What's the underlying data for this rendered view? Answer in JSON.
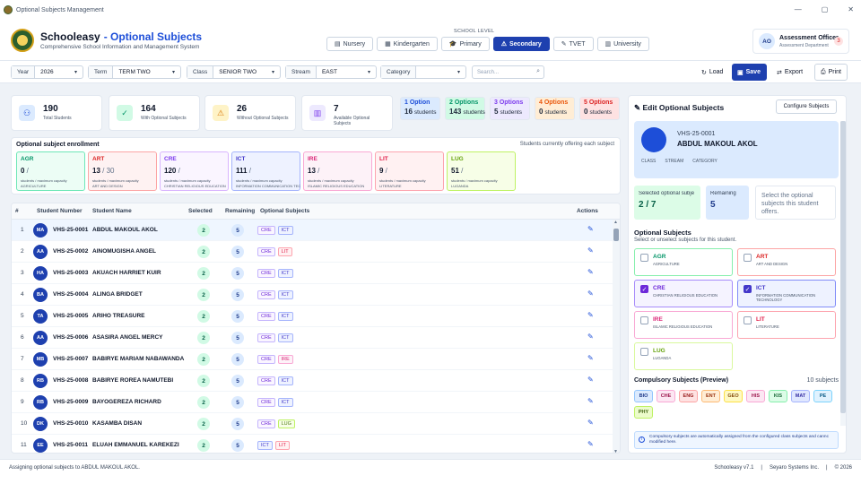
{
  "window": {
    "title": "Optional Subjects Management",
    "controls": [
      "—",
      "▢",
      "✕"
    ]
  },
  "header": {
    "brand": "Schooleasy",
    "separator": "-",
    "module": "Optional Subjects",
    "tagline": "Comprehensive School Information and Management System",
    "school_level_label": "SCHOOL LEVEL",
    "levels": [
      {
        "label": "Nursery",
        "icon": "book-icon",
        "glyph": "▤"
      },
      {
        "label": "Kindergarten",
        "icon": "grid-icon",
        "glyph": "▦"
      },
      {
        "label": "Primary",
        "icon": "graduation-icon",
        "glyph": "🎓"
      },
      {
        "label": "Secondary",
        "icon": "warning-triangle-icon",
        "glyph": "⚠",
        "active": true
      },
      {
        "label": "TVET",
        "icon": "pencil-icon",
        "glyph": "✎"
      },
      {
        "label": "University",
        "icon": "building-icon",
        "glyph": "▥"
      }
    ],
    "user": {
      "initials": "AO",
      "name": "Assessment Officer",
      "role": "Assessment Department",
      "badge": "3"
    }
  },
  "filters": {
    "year": {
      "label": "Year",
      "value": "2026"
    },
    "term": {
      "label": "Term",
      "value": "TERM TWO"
    },
    "class": {
      "label": "Class",
      "value": "SENIOR TWO"
    },
    "stream": {
      "label": "Stream",
      "value": "EAST"
    },
    "category": {
      "label": "Category",
      "value": ""
    },
    "search_placeholder": "Search...",
    "load_label": "Load",
    "save_label": "Save",
    "export_label": "Export",
    "print_label": "Print"
  },
  "stats": [
    {
      "value": "190",
      "label": "Total Students",
      "icon": "users-icon",
      "glyph": "⚇",
      "bg": "#dbeafe",
      "fg": "#1d4ed8"
    },
    {
      "value": "164",
      "label": "With Optional Subjects",
      "icon": "check-icon",
      "glyph": "✓",
      "bg": "#d1fae5",
      "fg": "#059669"
    },
    {
      "value": "26",
      "label": "Without Optional Subjects",
      "icon": "warning-icon",
      "glyph": "⚠",
      "bg": "#fef3c7",
      "fg": "#d97706"
    },
    {
      "value": "7",
      "label": "Available Optional Subjects",
      "icon": "books-icon",
      "glyph": "▥",
      "bg": "#ede9fe",
      "fg": "#7c3aed"
    }
  ],
  "option_counts": [
    {
      "title": "1 Option",
      "count": "16",
      "unit": "students",
      "bg": "#dbeafe",
      "fg": "#1d4ed8"
    },
    {
      "title": "2 Options",
      "count": "143",
      "unit": "students",
      "bg": "#d1fae5",
      "fg": "#059669"
    },
    {
      "title": "3 Options",
      "count": "5",
      "unit": "students",
      "bg": "#ede9fe",
      "fg": "#7c3aed"
    },
    {
      "title": "4 Options",
      "count": "0",
      "unit": "students",
      "bg": "#ffedd5",
      "fg": "#ea580c"
    },
    {
      "title": "5 Options",
      "count": "0",
      "unit": "students",
      "bg": "#fee2e2",
      "fg": "#dc2626"
    }
  ],
  "enrollment": {
    "title": "Optional subject enrollment",
    "note": "Students currently offering each subject",
    "capacity_label": "students / maximum capacity",
    "cards": [
      {
        "code": "AGR",
        "count": "0",
        "cap": "",
        "name": "AGRICULTURE",
        "bg": "#ecfdf5",
        "border": "#6ee7b7",
        "fg": "#059669"
      },
      {
        "code": "ART",
        "count": "13",
        "cap": "30",
        "name": "ART AND DESIGN",
        "bg": "#fef2f2",
        "border": "#fca5a5",
        "fg": "#dc2626"
      },
      {
        "code": "CRE",
        "count": "120",
        "cap": "",
        "name": "CHRISTIAN RELIGIOUS EDUCATION",
        "bg": "#faf5ff",
        "border": "#d8b4fe",
        "fg": "#7c3aed"
      },
      {
        "code": "ICT",
        "count": "111",
        "cap": "",
        "name": "INFORMATION COMMUNICATION TECHNOLOGY",
        "bg": "#eef2ff",
        "border": "#a5b4fc",
        "fg": "#4338ca"
      },
      {
        "code": "IRE",
        "count": "13",
        "cap": "",
        "name": "ISLAMIC RELIGIOUS EDUCATION",
        "bg": "#fdf2f8",
        "border": "#f9a8d4",
        "fg": "#db2777"
      },
      {
        "code": "LIT",
        "count": "9",
        "cap": "",
        "name": "LITERATURE",
        "bg": "#fff1f2",
        "border": "#fda4af",
        "fg": "#e11d48"
      },
      {
        "code": "LUG",
        "count": "51",
        "cap": "",
        "name": "LUGANDA",
        "bg": "#f7fee7",
        "border": "#bef264",
        "fg": "#65a30d"
      }
    ]
  },
  "table": {
    "headers": {
      "idx": "#",
      "number": "Student Number",
      "name": "Student Name",
      "selected": "Selected",
      "remaining": "Remaining",
      "optional": "Optional Subjects",
      "actions": "Actions"
    },
    "edit_glyph": "✎",
    "rows": [
      {
        "idx": "1",
        "initials": "MA",
        "number": "VHS-25-0001",
        "name": "ABDUL MAKOUL AKOL",
        "selected": "2",
        "remaining": "5",
        "tags": [
          "CRE",
          "ICT"
        ],
        "sel": true
      },
      {
        "idx": "2",
        "initials": "AA",
        "number": "VHS-25-0002",
        "name": "AINOMUGISHA ANGEL",
        "selected": "2",
        "remaining": "5",
        "tags": [
          "CRE",
          "LIT"
        ]
      },
      {
        "idx": "3",
        "initials": "HA",
        "number": "VHS-25-0003",
        "name": "AKUACH HARRIET KUIR",
        "selected": "2",
        "remaining": "5",
        "tags": [
          "CRE",
          "ICT"
        ]
      },
      {
        "idx": "4",
        "initials": "BA",
        "number": "VHS-25-0004",
        "name": "ALINGA BRIDGET",
        "selected": "2",
        "remaining": "5",
        "tags": [
          "CRE",
          "ICT"
        ]
      },
      {
        "idx": "5",
        "initials": "TA",
        "number": "VHS-25-0005",
        "name": "ARIHO TREASURE",
        "selected": "2",
        "remaining": "5",
        "tags": [
          "CRE",
          "ICT"
        ]
      },
      {
        "idx": "6",
        "initials": "AA",
        "number": "VHS-25-0006",
        "name": "ASASIRA ANGEL MERCY",
        "selected": "2",
        "remaining": "5",
        "tags": [
          "CRE",
          "ICT"
        ]
      },
      {
        "idx": "7",
        "initials": "MB",
        "number": "VHS-25-0007",
        "name": "BABIRYE MARIAM NABAWANDA",
        "selected": "2",
        "remaining": "5",
        "tags": [
          "CRE",
          "IRE"
        ]
      },
      {
        "idx": "8",
        "initials": "RB",
        "number": "VHS-25-0008",
        "name": "BABIRYE ROREA NAMUTEBI",
        "selected": "2",
        "remaining": "5",
        "tags": [
          "CRE",
          "ICT"
        ]
      },
      {
        "idx": "9",
        "initials": "RB",
        "number": "VHS-25-0009",
        "name": "BAYOGEREZA RICHARD",
        "selected": "2",
        "remaining": "5",
        "tags": [
          "CRE",
          "ICT"
        ]
      },
      {
        "idx": "10",
        "initials": "DK",
        "number": "VHS-25-0010",
        "name": "KASAMBA DISAN",
        "selected": "2",
        "remaining": "5",
        "tags": [
          "CRE",
          "LUG"
        ]
      },
      {
        "idx": "11",
        "initials": "EE",
        "number": "VHS-25-0011",
        "name": "ELUAH EMMANUEL KAREKEZI",
        "selected": "2",
        "remaining": "5",
        "tags": [
          "ICT",
          "LIT"
        ]
      }
    ]
  },
  "panel": {
    "title": "Edit Optional Subjects",
    "configure_label": "Configure Subjects",
    "student": {
      "id": "VHS-25-0001",
      "name": "ABDUL MAKOUL AKOL",
      "meta": [
        "CLASS",
        "STREAM",
        "CATEGORY"
      ]
    },
    "selected_label": "Selected optional subje",
    "selected_value": "2 / 7",
    "remaining_label": "Remaining",
    "remaining_value": "5",
    "hint": "Select the optional subjects this student offers.",
    "optional_heading": "Optional Subjects",
    "optional_sub": "Select or unselect subjects for this student.",
    "subjects": [
      {
        "code": "AGR",
        "name": "AGRICULTURE",
        "checked": false,
        "border": "#86efac",
        "fg": "#059669",
        "bg": "#fff"
      },
      {
        "code": "ART",
        "name": "ART AND DESIGN",
        "checked": false,
        "border": "#fca5a5",
        "fg": "#dc2626",
        "bg": "#fff"
      },
      {
        "code": "CRE",
        "name": "CHRISTIAN RELIGIOUS EDUCATION",
        "checked": true,
        "border": "#a78bfa",
        "fg": "#6d28d9",
        "bg": "#f5f3ff"
      },
      {
        "code": "ICT",
        "name": "INFORMATION COMMUNICATION TECHNOLOGY",
        "checked": true,
        "border": "#818cf8",
        "fg": "#4338ca",
        "bg": "#eef2ff"
      },
      {
        "code": "IRE",
        "name": "ISLAMIC RELIGIOUS EDUCATION",
        "checked": false,
        "border": "#f9a8d4",
        "fg": "#db2777",
        "bg": "#fff"
      },
      {
        "code": "LIT",
        "name": "LITERATURE",
        "checked": false,
        "border": "#fda4af",
        "fg": "#e11d48",
        "bg": "#fff"
      },
      {
        "code": "LUG",
        "name": "LUGANDA",
        "checked": false,
        "border": "#d9f99d",
        "fg": "#65a30d",
        "bg": "#fff"
      }
    ],
    "compulsory_heading": "Compulsory Subjects (Preview)",
    "compulsory_count": "10  subjects",
    "compulsory": [
      "BIO",
      "CHE",
      "ENG",
      "ENT",
      "GEO",
      "HIS",
      "KIS",
      "MAT",
      "PE",
      "PHY"
    ],
    "note": "Compulsory subjects are automatically assigned from the configured class subjects and cannc modified here."
  },
  "status": {
    "left": "Assigning optional subjects to ABDUL MAKOUL AKOL.",
    "version": "Schooleasy v7.1",
    "company": "Seyaro Systems Inc.",
    "year": "© 2026"
  },
  "colors": {
    "primary": "#1e40af",
    "tags": {
      "CRE": [
        "#faf5ff",
        "#c4b5fd",
        "#6d28d9"
      ],
      "ICT": [
        "#eef2ff",
        "#a5b4fc",
        "#4338ca"
      ],
      "LIT": [
        "#fff1f2",
        "#fda4af",
        "#e11d48"
      ],
      "IRE": [
        "#fdf2f8",
        "#f9a8d4",
        "#db2777"
      ],
      "LUG": [
        "#f7fee7",
        "#bef264",
        "#4d7c0f"
      ]
    }
  }
}
